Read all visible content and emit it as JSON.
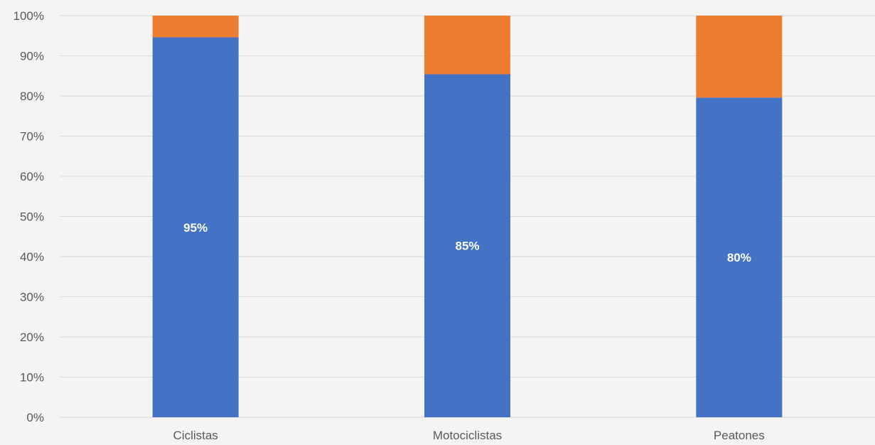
{
  "chart_data": {
    "type": "bar",
    "stacked": true,
    "percent_stacked": true,
    "categories": [
      "Ciclistas",
      "Motociclistas",
      "Peatones"
    ],
    "series": [
      {
        "values": [
          94.6,
          85.4,
          79.6
        ],
        "labels": [
          "95%",
          "85%",
          "80%"
        ],
        "color": "#4472c4"
      },
      {
        "values": [
          5.4,
          14.6,
          20.4
        ],
        "color": "#ed7d31"
      }
    ],
    "ylim": [
      0,
      100
    ],
    "yticks": [
      "0%",
      "10%",
      "20%",
      "30%",
      "40%",
      "50%",
      "60%",
      "70%",
      "80%",
      "90%",
      "100%"
    ],
    "title": "",
    "xlabel": "",
    "ylabel": "",
    "grid": true,
    "legend": "none",
    "background": "#f5f4f2"
  }
}
